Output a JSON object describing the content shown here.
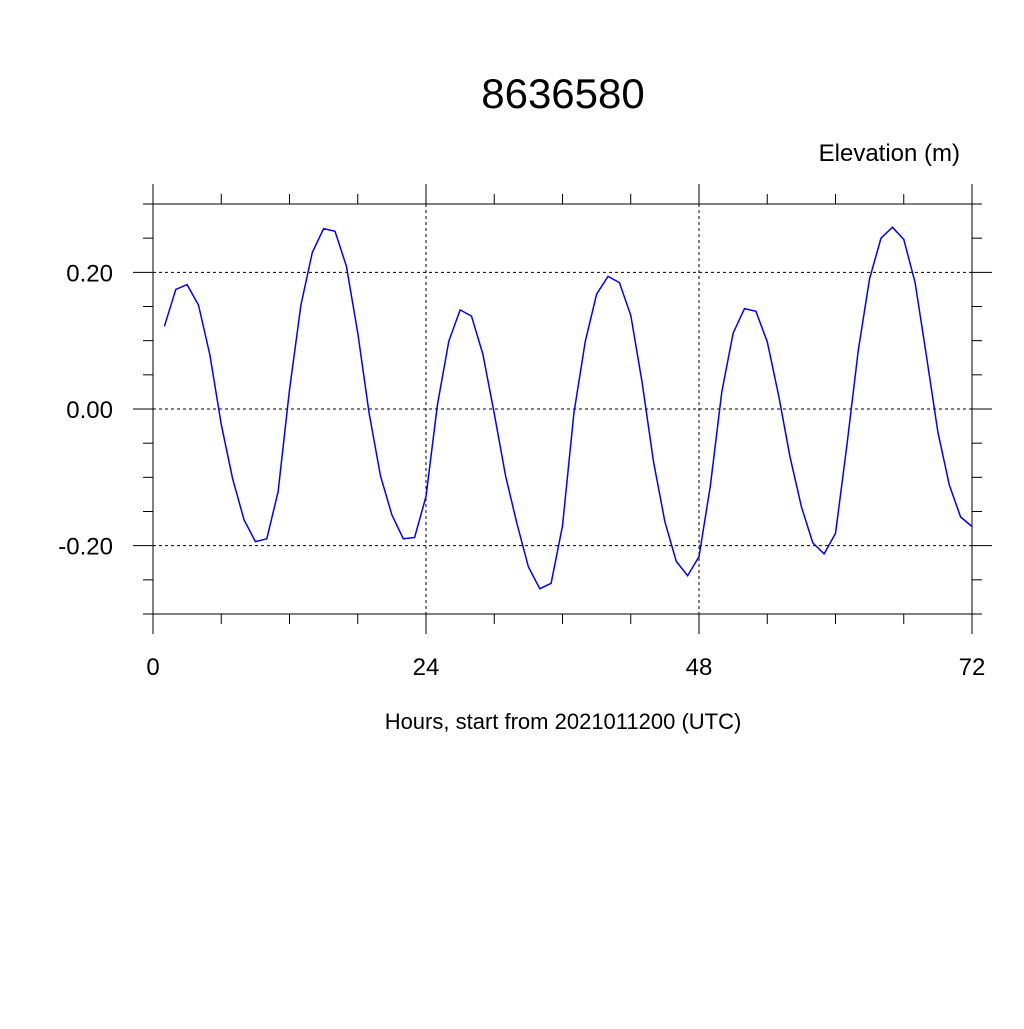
{
  "chart_data": {
    "type": "line",
    "title": "8636580",
    "ylabel": "Elevation (m)",
    "xlabel": "Hours, start from 2021011200 (UTC)",
    "xlim": [
      0,
      72
    ],
    "ylim": [
      -0.3,
      0.3
    ],
    "xticks": [
      0,
      24,
      48,
      72
    ],
    "xtick_labels": [
      "0",
      "24",
      "48",
      "72"
    ],
    "yticks": [
      0.2,
      0.0,
      -0.2
    ],
    "ytick_labels": [
      "0.20",
      "0.00",
      "-0.20"
    ],
    "grid": "dashed at major ticks",
    "line_color": "#0000ff",
    "x": [
      1,
      2,
      3,
      4,
      5,
      6,
      7,
      8,
      9,
      10,
      11,
      12,
      13,
      14,
      15,
      16,
      17,
      18,
      19,
      20,
      21,
      22,
      23,
      24,
      25,
      26,
      27,
      28,
      29,
      30,
      31,
      32,
      33,
      34,
      35,
      36,
      37,
      38,
      39,
      40,
      41,
      42,
      43,
      44,
      45,
      46,
      47,
      48,
      49,
      50,
      51,
      52,
      53,
      54,
      55,
      56,
      57,
      58,
      59,
      60,
      61,
      62,
      63,
      64,
      65,
      66,
      67,
      68,
      69,
      70,
      71,
      72
    ],
    "values": [
      0.121,
      0.175,
      0.182,
      0.152,
      0.079,
      -0.023,
      -0.102,
      -0.162,
      -0.194,
      -0.19,
      -0.121,
      0.028,
      0.152,
      0.229,
      0.264,
      0.26,
      0.209,
      0.111,
      -0.006,
      -0.098,
      -0.155,
      -0.19,
      -0.188,
      -0.128,
      0.006,
      0.099,
      0.145,
      0.136,
      0.08,
      -0.007,
      -0.098,
      -0.168,
      -0.231,
      -0.263,
      -0.255,
      -0.171,
      -0.006,
      0.099,
      0.168,
      0.194,
      0.185,
      0.137,
      0.039,
      -0.077,
      -0.165,
      -0.223,
      -0.244,
      -0.216,
      -0.112,
      0.025,
      0.111,
      0.147,
      0.143,
      0.098,
      0.02,
      -0.07,
      -0.143,
      -0.196,
      -0.212,
      -0.182,
      -0.053,
      0.086,
      0.191,
      0.25,
      0.266,
      0.248,
      0.185,
      0.077,
      -0.034,
      -0.111,
      -0.158,
      -0.172
    ]
  }
}
